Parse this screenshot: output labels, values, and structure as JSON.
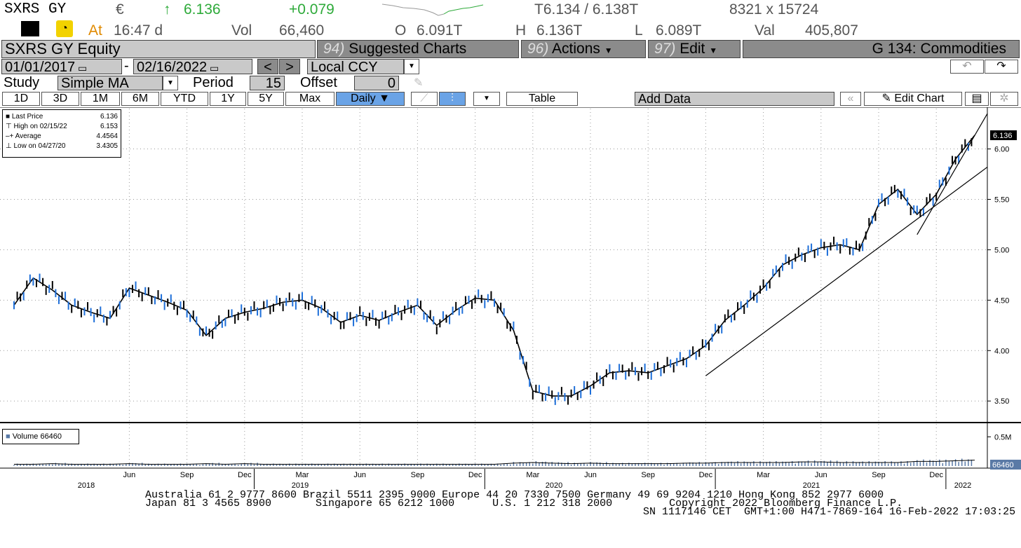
{
  "header": {
    "ticker": "SXRS GY",
    "currency": "€",
    "arrow": "↑",
    "last": "6.136",
    "change": "+0.079",
    "bid_ask": "T6.134 / 6.138T",
    "size": "8321 x 15724",
    "at_label": "At",
    "time": "16:47 d",
    "vol_label": "Vol",
    "vol": "66,460",
    "open_label": "O",
    "open": "6.091T",
    "high_label": "H",
    "high": "6.136T",
    "low_label": "L",
    "low": "6.089T",
    "val_label": "Val",
    "val": "405,807"
  },
  "toolbar": {
    "security": "SXRS GY Equity",
    "suggested_num": "94)",
    "suggested": "Suggested Charts",
    "actions_num": "96)",
    "actions": "Actions",
    "edit_num": "97)",
    "edit": "Edit",
    "template": "G 134: Commodities"
  },
  "dates": {
    "start": "01/01/2017",
    "dash": "-",
    "end": "02/16/2022",
    "currency": "Local CCY"
  },
  "study": {
    "label": "Study",
    "type": "Simple MA",
    "period_label": "Period",
    "period": "15",
    "offset_label": "Offset",
    "offset": "0"
  },
  "ranges": [
    "1D",
    "3D",
    "1M",
    "6M",
    "YTD",
    "1Y",
    "5Y",
    "Max"
  ],
  "frequency": "Daily ▼",
  "table_label": "Table",
  "add_data": "Add Data",
  "edit_chart": "Edit Chart",
  "legend": {
    "last_label": "Last Price",
    "last_value": "6.136",
    "high_label": "High on 02/15/22",
    "high_value": "6.153",
    "avg_label": "Average",
    "avg_value": "4.4564",
    "low_label": "Low on 04/27/20",
    "low_value": "3.4305"
  },
  "volume_legend": "Volume 66460",
  "volume_axis_label": "0.5M",
  "volume_last": "66460",
  "chart_data": {
    "type": "line",
    "y_ticks": [
      "3.50",
      "4.00",
      "4.50",
      "5.00",
      "5.50",
      "6.00"
    ],
    "ylim": [
      3.3,
      6.4
    ],
    "last_tag": "6.136",
    "x_ticks": [
      "Jun",
      "Sep",
      "Dec",
      "Mar",
      "Jun",
      "Sep",
      "Dec",
      "Mar",
      "Jun",
      "Sep",
      "Dec",
      "Mar",
      "Jun",
      "Sep",
      "Dec"
    ],
    "years": [
      "2018",
      "2019",
      "2020",
      "2021",
      "2022"
    ],
    "x": [
      "2017-12",
      "2018-01",
      "2018-02",
      "2018-03",
      "2018-04",
      "2018-05",
      "2018-06",
      "2018-07",
      "2018-08",
      "2018-09",
      "2018-10",
      "2018-11",
      "2018-12",
      "2019-01",
      "2019-02",
      "2019-03",
      "2019-04",
      "2019-05",
      "2019-06",
      "2019-07",
      "2019-08",
      "2019-09",
      "2019-10",
      "2019-11",
      "2019-12",
      "2020-01",
      "2020-02",
      "2020-03",
      "2020-04",
      "2020-05",
      "2020-06",
      "2020-07",
      "2020-08",
      "2020-09",
      "2020-10",
      "2020-11",
      "2020-12",
      "2021-01",
      "2021-02",
      "2021-03",
      "2021-04",
      "2021-05",
      "2021-06",
      "2021-07",
      "2021-08",
      "2021-09",
      "2021-10",
      "2021-11",
      "2021-12",
      "2022-01",
      "2022-02"
    ],
    "series": [
      {
        "values": [
          4.45,
          4.72,
          4.6,
          4.45,
          4.38,
          4.32,
          4.62,
          4.55,
          4.48,
          4.4,
          4.15,
          4.32,
          4.38,
          4.42,
          4.48,
          4.5,
          4.42,
          4.28,
          4.35,
          4.3,
          4.38,
          4.45,
          4.25,
          4.4,
          4.52,
          4.5,
          4.2,
          3.6,
          3.55,
          3.55,
          3.65,
          3.78,
          3.8,
          3.78,
          3.85,
          3.92,
          4.05,
          4.3,
          4.45,
          4.62,
          4.85,
          4.95,
          5.02,
          5.05,
          5.0,
          5.45,
          5.6,
          5.35,
          5.55,
          5.9,
          6.136
        ]
      }
    ],
    "trendlines": [
      {
        "from": [
          "2020-12",
          3.75
        ],
        "to": [
          "2022-02",
          5.82
        ]
      },
      {
        "from": [
          "2021-11",
          5.15
        ],
        "to": [
          "2022-02",
          6.35
        ]
      }
    ],
    "volume_ylim": [
      0,
      0.6
    ],
    "volume": [
      0.03,
      0.03,
      0.04,
      0.03,
      0.03,
      0.03,
      0.04,
      0.03,
      0.03,
      0.03,
      0.04,
      0.03,
      0.04,
      0.03,
      0.03,
      0.03,
      0.03,
      0.03,
      0.03,
      0.03,
      0.03,
      0.03,
      0.03,
      0.03,
      0.03,
      0.03,
      0.05,
      0.06,
      0.05,
      0.04,
      0.05,
      0.04,
      0.04,
      0.04,
      0.04,
      0.05,
      0.05,
      0.06,
      0.06,
      0.06,
      0.06,
      0.07,
      0.07,
      0.06,
      0.06,
      0.06,
      0.06,
      0.08,
      0.08,
      0.09,
      0.1
    ]
  }
}
